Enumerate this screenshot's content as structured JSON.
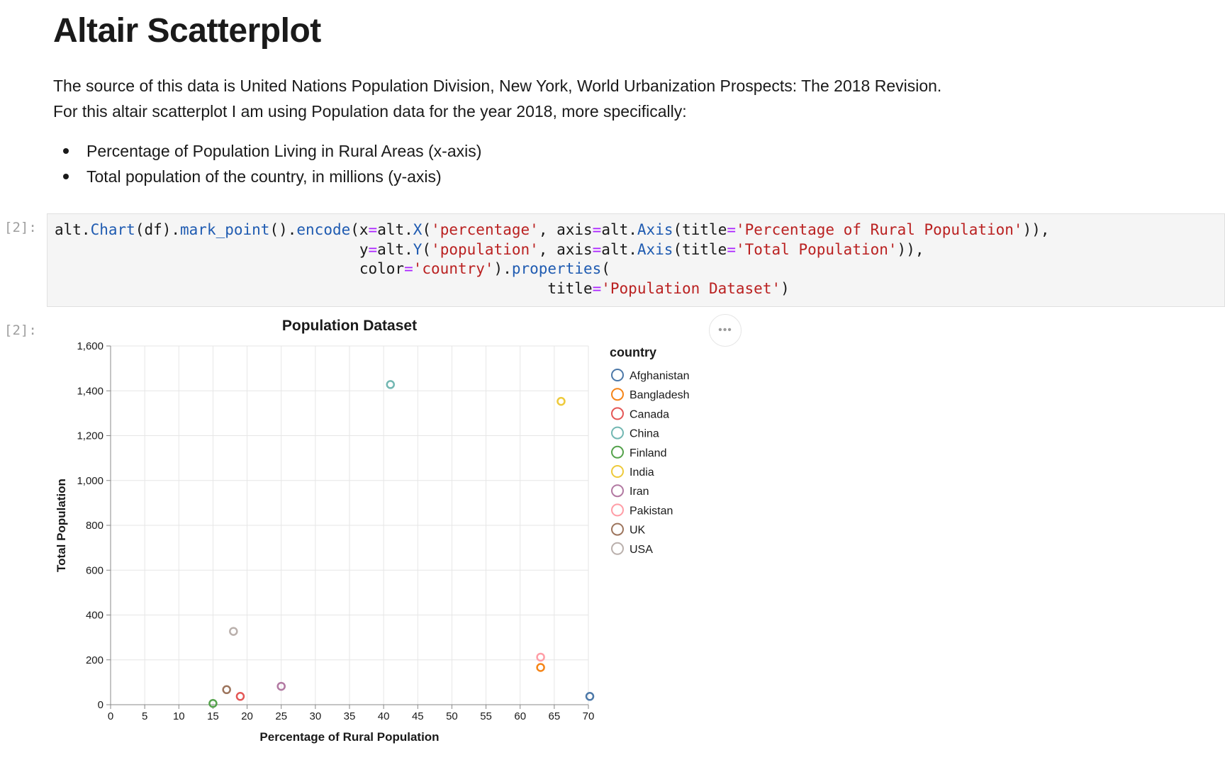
{
  "markdown": {
    "title": "Altair Scatterplot",
    "paragraph1": "The source of this data is United Nations Population Division, New York, World Urbanization Prospects: The 2018 Revision.",
    "paragraph2": "For this altair scatterplot I am using Population data for the year 2018, more specifically:",
    "bullets": [
      "Percentage of Population Living in Rural Areas (x-axis)",
      "Total population of the country, in millions (y-axis)"
    ]
  },
  "cell": {
    "input_prompt": "[2]:",
    "output_prompt": "[2]:",
    "code_lines": [
      "alt.Chart(df).mark_point().encode(x=alt.X('percentage', axis=alt.Axis(title='Percentage of Rural Population')),",
      "                                  y=alt.Y('population', axis=alt.Axis(title='Total Population')),",
      "                                  color='country').properties(",
      "                                                       title='Population Dataset')"
    ]
  },
  "more_menu": {
    "label": "•••",
    "icon": "ellipsis-icon"
  },
  "chart_data": {
    "type": "scatter",
    "title": "Population Dataset",
    "xlabel": "Percentage of Rural Population",
    "ylabel": "Total Population",
    "xlim": [
      0,
      70
    ],
    "ylim": [
      0,
      1600
    ],
    "xticks": [
      0,
      5,
      10,
      15,
      20,
      25,
      30,
      35,
      40,
      45,
      50,
      55,
      60,
      65,
      70
    ],
    "yticks": [
      0,
      200,
      400,
      600,
      800,
      1000,
      1200,
      1400,
      1600
    ],
    "ytick_labels": [
      "0",
      "200",
      "400",
      "600",
      "800",
      "1,000",
      "1,200",
      "1,400",
      "1,600"
    ],
    "grid": true,
    "legend_title": "country",
    "legend_position": "right",
    "series": [
      {
        "name": "Afghanistan",
        "color": "#4c78a8",
        "x": 75,
        "y": 37
      },
      {
        "name": "Bangladesh",
        "color": "#f58518",
        "x": 63,
        "y": 166
      },
      {
        "name": "Canada",
        "color": "#e45756",
        "x": 19,
        "y": 37
      },
      {
        "name": "China",
        "color": "#72b7b2",
        "x": 41,
        "y": 1428
      },
      {
        "name": "Finland",
        "color": "#54a24b",
        "x": 15,
        "y": 5.5
      },
      {
        "name": "India",
        "color": "#eeca3b",
        "x": 66,
        "y": 1353
      },
      {
        "name": "Iran",
        "color": "#b279a2",
        "x": 25,
        "y": 82
      },
      {
        "name": "Pakistan",
        "color": "#ff9da6",
        "x": 63,
        "y": 212
      },
      {
        "name": "UK",
        "color": "#9d755d",
        "x": 17,
        "y": 67
      },
      {
        "name": "USA",
        "color": "#bab0ac",
        "x": 18,
        "y": 327
      }
    ]
  }
}
